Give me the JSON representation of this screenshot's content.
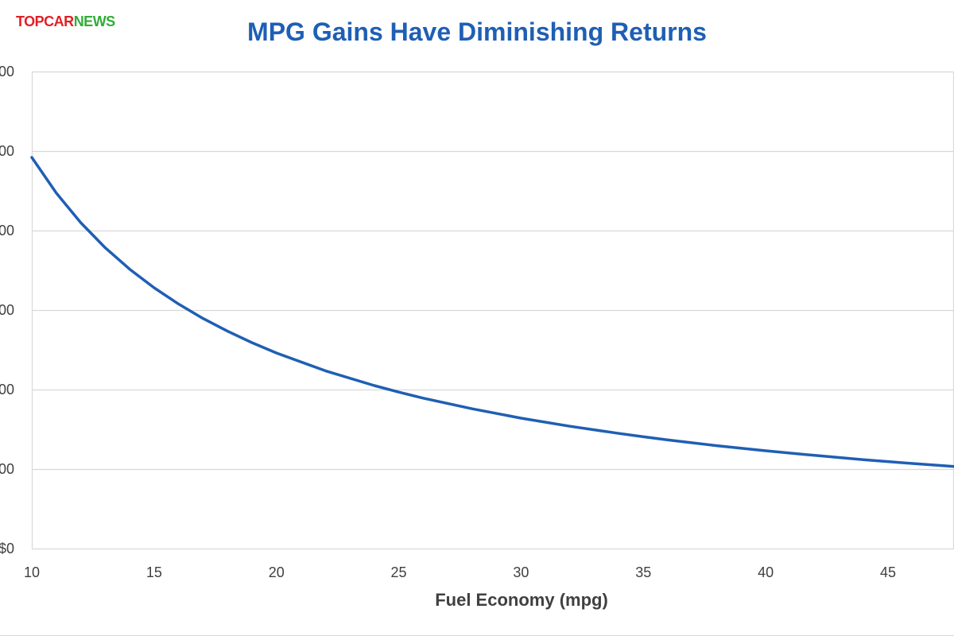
{
  "brand": {
    "logo_part1": "TOPCAR",
    "logo_part2": "NEWS",
    "logo_color1": "#e31e24",
    "logo_color2": "#2fae36"
  },
  "colors": {
    "title": "#1f5fb4",
    "line": "#1f5fb4",
    "grid": "#d9d9d9",
    "text": "#404040"
  },
  "chart_data": {
    "type": "line",
    "title": "MPG Gains Have Diminishing Returns",
    "xlabel": "Fuel Economy (mpg)",
    "ylabel": "",
    "xlim": [
      10,
      50
    ],
    "ylim": [
      0,
      3000
    ],
    "grid": true,
    "x_ticks": [
      10,
      15,
      20,
      25,
      30,
      35,
      40,
      45
    ],
    "y_ticks": [
      {
        "value": 0,
        "label": "$0"
      },
      {
        "value": 500,
        "label": "00"
      },
      {
        "value": 1000,
        "label": "00"
      },
      {
        "value": 1500,
        "label": "00"
      },
      {
        "value": 2000,
        "label": "00"
      },
      {
        "value": 2500,
        "label": "00"
      },
      {
        "value": 3000,
        "label": "00"
      }
    ],
    "series": [
      {
        "x": [
          10,
          11,
          12,
          13,
          14,
          15,
          16,
          17,
          18,
          19,
          20,
          22,
          24,
          25,
          26,
          28,
          30,
          32,
          34,
          35,
          36,
          38,
          40,
          42,
          44,
          45,
          46,
          48
        ],
        "y": [
          2460,
          2236,
          2050,
          1892,
          1757,
          1640,
          1538,
          1447,
          1367,
          1295,
          1230,
          1118,
          1025,
          984,
          946,
          879,
          820,
          769,
          724,
          703,
          683,
          647,
          615,
          586,
          559,
          547,
          535,
          513
        ]
      }
    ]
  }
}
